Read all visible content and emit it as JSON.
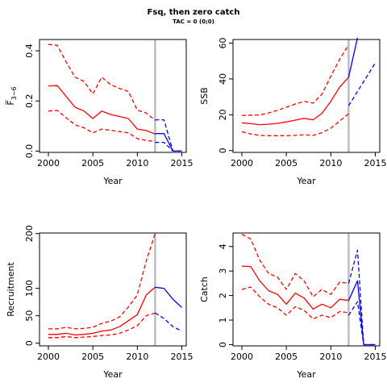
{
  "figure": {
    "title": "Fsq, then zero catch",
    "subtitle": "TAC = 0 (0;0)"
  },
  "colors": {
    "historical": "#ff0000",
    "projection": "#0000ff",
    "divider": "#bebebe"
  },
  "chart_data": [
    {
      "type": "line",
      "ylabel": "F̅",
      "ylabel_sub": "3−6",
      "xlabel": "Year",
      "xlim": [
        1999,
        2015.5
      ],
      "ylim": [
        -0.005,
        0.445
      ],
      "xticks": [
        2000,
        2005,
        2010,
        2015
      ],
      "yticks": [
        0.0,
        0.2,
        0.4
      ],
      "ytick_labels": [
        "0.0",
        "0.2",
        "0.4"
      ],
      "divider_x": 2012,
      "series": [
        {
          "kind": "historical",
          "style": "solid",
          "x": [
            2000,
            2001,
            2002,
            2003,
            2004,
            2005,
            2006,
            2007,
            2008,
            2009,
            2010,
            2011,
            2012
          ],
          "y": [
            0.26,
            0.261,
            0.218,
            0.175,
            0.16,
            0.13,
            0.16,
            0.146,
            0.138,
            0.13,
            0.088,
            0.082,
            0.068
          ]
        },
        {
          "kind": "historical",
          "style": "dashed",
          "x": [
            2000,
            2001,
            2002,
            2003,
            2004,
            2005,
            2006,
            2007,
            2008,
            2009,
            2010,
            2011,
            2012
          ],
          "y": [
            0.425,
            0.422,
            0.355,
            0.295,
            0.278,
            0.228,
            0.295,
            0.265,
            0.25,
            0.238,
            0.163,
            0.152,
            0.123
          ]
        },
        {
          "kind": "historical",
          "style": "dashed",
          "x": [
            2000,
            2001,
            2002,
            2003,
            2004,
            2005,
            2006,
            2007,
            2008,
            2009,
            2010,
            2011,
            2012
          ],
          "y": [
            0.16,
            0.162,
            0.133,
            0.105,
            0.093,
            0.073,
            0.088,
            0.083,
            0.078,
            0.073,
            0.05,
            0.043,
            0.038
          ]
        },
        {
          "kind": "projection",
          "style": "solid",
          "x": [
            2012,
            2013,
            2014,
            2015
          ],
          "y": [
            0.07,
            0.07,
            0.0,
            0.0
          ]
        },
        {
          "kind": "projection",
          "style": "dashed",
          "x": [
            2012,
            2013,
            2014,
            2015
          ],
          "y": [
            0.125,
            0.125,
            0.0,
            0.0
          ]
        },
        {
          "kind": "projection",
          "style": "dashed",
          "x": [
            2012,
            2013,
            2014,
            2015
          ],
          "y": [
            0.035,
            0.035,
            0.0,
            0.0
          ]
        }
      ]
    },
    {
      "type": "line",
      "ylabel": "SSB",
      "xlabel": "Year",
      "xlim": [
        1999,
        2015.5
      ],
      "ylim": [
        -1,
        62
      ],
      "xticks": [
        2000,
        2005,
        2010,
        2015
      ],
      "yticks": [
        0,
        20,
        40,
        60
      ],
      "ytick_labels": [
        "0",
        "20",
        "40",
        "60"
      ],
      "divider_x": 2012,
      "series": [
        {
          "kind": "historical",
          "style": "solid",
          "x": [
            2000,
            2001,
            2002,
            2003,
            2004,
            2005,
            2006,
            2007,
            2008,
            2009,
            2010,
            2011,
            2012
          ],
          "y": [
            15.5,
            15.0,
            14.5,
            14.7,
            15.2,
            16.0,
            17.0,
            18.0,
            17.2,
            20.8,
            27.5,
            35.5,
            41.0
          ]
        },
        {
          "kind": "historical",
          "style": "dashed",
          "x": [
            2000,
            2001,
            2002,
            2003,
            2004,
            2005,
            2006,
            2007,
            2008,
            2009,
            2010,
            2011,
            2012
          ],
          "y": [
            19.5,
            19.8,
            19.9,
            21.0,
            22.5,
            24.2,
            26.0,
            27.5,
            26.5,
            31.5,
            41.5,
            51.0,
            59.0
          ]
        },
        {
          "kind": "historical",
          "style": "dashed",
          "x": [
            2000,
            2001,
            2002,
            2003,
            2004,
            2005,
            2006,
            2007,
            2008,
            2009,
            2010,
            2011,
            2012
          ],
          "y": [
            10.5,
            9.2,
            8.5,
            8.3,
            8.3,
            8.3,
            8.5,
            8.8,
            8.5,
            10.0,
            12.5,
            16.5,
            20.5
          ]
        },
        {
          "kind": "projection",
          "style": "solid",
          "x": [
            2012,
            2013
          ],
          "y": [
            41.0,
            63.0
          ]
        },
        {
          "kind": "projection",
          "style": "dashed",
          "x": [
            2012,
            2013,
            2014,
            2015
          ],
          "y": [
            25.0,
            33.0,
            41.0,
            49.0
          ]
        }
      ]
    },
    {
      "type": "line",
      "ylabel": "Recruitment",
      "xlabel": "Year",
      "xlim": [
        1999,
        2015.5
      ],
      "ylim": [
        -5,
        201
      ],
      "xticks": [
        2000,
        2005,
        2010,
        2015
      ],
      "yticks": [
        0,
        50,
        100,
        200
      ],
      "ytick_labels": [
        "0",
        "50",
        "100",
        "200"
      ],
      "divider_x": 2012,
      "series": [
        {
          "kind": "historical",
          "style": "solid",
          "x": [
            2000,
            2001,
            2002,
            2003,
            2004,
            2005,
            2006,
            2007,
            2008,
            2009,
            2010,
            2011,
            2012
          ],
          "y": [
            16,
            16,
            18,
            15,
            16,
            18,
            22,
            24,
            30,
            41,
            52,
            88,
            102
          ]
        },
        {
          "kind": "historical",
          "style": "dashed",
          "x": [
            2000,
            2001,
            2002,
            2003,
            2004,
            2005,
            2006,
            2007,
            2008,
            2009,
            2010,
            2011,
            2012
          ],
          "y": [
            26,
            26,
            29,
            26,
            27,
            29,
            36,
            40,
            48,
            66,
            88,
            150,
            200
          ]
        },
        {
          "kind": "historical",
          "style": "dashed",
          "x": [
            2000,
            2001,
            2002,
            2003,
            2004,
            2005,
            2006,
            2007,
            2008,
            2009,
            2010,
            2011,
            2012
          ],
          "y": [
            10,
            10,
            12,
            10,
            11,
            12,
            14,
            15,
            18,
            24,
            32,
            50,
            55
          ]
        },
        {
          "kind": "projection",
          "style": "solid",
          "x": [
            2012,
            2013,
            2014,
            2015
          ],
          "y": [
            102,
            100,
            80,
            65
          ]
        },
        {
          "kind": "projection",
          "style": "dashed",
          "x": [
            2012,
            2013,
            2014,
            2015
          ],
          "y": [
            55,
            45,
            30,
            22
          ]
        }
      ]
    },
    {
      "type": "line",
      "ylabel": "Catch",
      "xlabel": "Year",
      "xlim": [
        1999,
        2015.5
      ],
      "ylim": [
        -0.05,
        4.55
      ],
      "xticks": [
        2000,
        2005,
        2010,
        2015
      ],
      "yticks": [
        0,
        1,
        2,
        3,
        4
      ],
      "ytick_labels": [
        "0",
        "1",
        "2",
        "3",
        "4"
      ],
      "divider_x": 2012,
      "series": [
        {
          "kind": "historical",
          "style": "solid",
          "x": [
            2000,
            2001,
            2002,
            2003,
            2004,
            2005,
            2006,
            2007,
            2008,
            2009,
            2010,
            2011,
            2012
          ],
          "y": [
            3.2,
            3.18,
            2.6,
            2.2,
            2.05,
            1.65,
            2.1,
            1.9,
            1.45,
            1.65,
            1.5,
            1.85,
            1.8
          ]
        },
        {
          "kind": "historical",
          "style": "dashed",
          "x": [
            2000,
            2001,
            2002,
            2003,
            2004,
            2005,
            2006,
            2007,
            2008,
            2009,
            2010,
            2011,
            2012
          ],
          "y": [
            4.5,
            4.3,
            3.45,
            2.9,
            2.75,
            2.25,
            2.9,
            2.6,
            1.95,
            2.25,
            2.05,
            2.55,
            2.5
          ]
        },
        {
          "kind": "historical",
          "style": "dashed",
          "x": [
            2000,
            2001,
            2002,
            2003,
            2004,
            2005,
            2006,
            2007,
            2008,
            2009,
            2010,
            2011,
            2012
          ],
          "y": [
            2.25,
            2.35,
            1.95,
            1.65,
            1.5,
            1.2,
            1.55,
            1.4,
            1.05,
            1.2,
            1.1,
            1.35,
            1.3
          ]
        },
        {
          "kind": "projection",
          "style": "solid",
          "x": [
            2012,
            2013,
            2013.7,
            2014,
            2015
          ],
          "y": [
            1.8,
            2.6,
            0.0,
            0.0,
            0.0
          ]
        },
        {
          "kind": "projection",
          "style": "dashed",
          "x": [
            2012,
            2013,
            2013.7,
            2014,
            2015
          ],
          "y": [
            2.5,
            3.85,
            0.0,
            0.0,
            0.0
          ]
        },
        {
          "kind": "projection",
          "style": "dashed",
          "x": [
            2012,
            2013,
            2013.7,
            2014,
            2015
          ],
          "y": [
            1.2,
            1.75,
            0.0,
            0.0,
            0.0
          ]
        }
      ]
    }
  ]
}
